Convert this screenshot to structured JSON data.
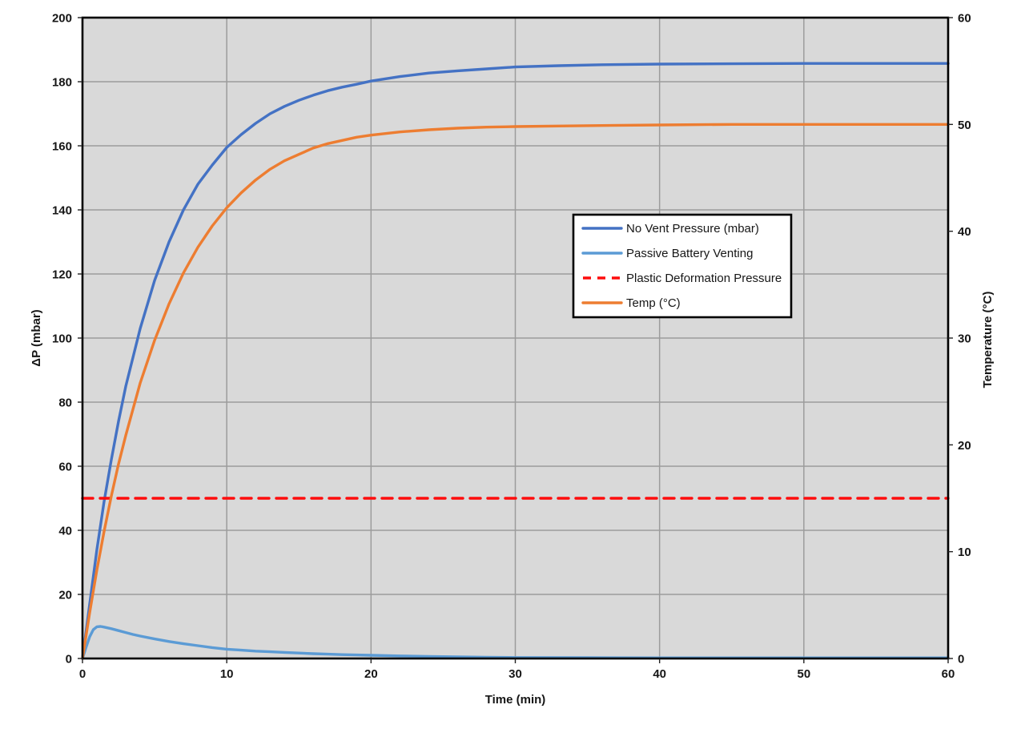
{
  "chart_data": {
    "type": "line",
    "title": "",
    "plot_background": "#d9d9d9",
    "grid_color": "#9c9c9c",
    "border_color": "#000000",
    "x_axis": {
      "label": "Time (min)",
      "min": 0,
      "max": 60,
      "ticks": [
        0,
        10,
        20,
        30,
        40,
        50,
        60
      ]
    },
    "y_axis_left": {
      "label": "ΔP (mbar)",
      "min": 0,
      "max": 200,
      "ticks": [
        0,
        20,
        40,
        60,
        80,
        100,
        120,
        140,
        160,
        180,
        200
      ]
    },
    "y_axis_right": {
      "label": "Temperature (°C)",
      "min": 0,
      "max": 60,
      "ticks": [
        0,
        10,
        20,
        30,
        40,
        50,
        60
      ]
    },
    "legend": {
      "position": "middle-right",
      "background": "#ffffff",
      "border_color": "#000000"
    },
    "series": [
      {
        "name": "No Vent Pressure (mbar)",
        "axis": "left",
        "color": "#4472c4",
        "style": "solid",
        "x": [
          0,
          0.5,
          1,
          1.5,
          2,
          2.5,
          3,
          4,
          5,
          6,
          7,
          8,
          9,
          10,
          11,
          12,
          13,
          14,
          15,
          16,
          17,
          18,
          19,
          20,
          22,
          24,
          26,
          28,
          30,
          33,
          36,
          40,
          45,
          50,
          55,
          60
        ],
        "y": [
          0,
          17,
          34,
          49,
          62,
          74,
          85,
          103,
          118,
          130,
          140,
          148,
          154,
          159.5,
          163.5,
          167,
          170,
          172.3,
          174.2,
          175.8,
          177.2,
          178.3,
          179.2,
          180.2,
          181.6,
          182.7,
          183.4,
          184,
          184.6,
          185,
          185.3,
          185.5,
          185.6,
          185.7,
          185.7,
          185.7
        ]
      },
      {
        "name": "Passive Battery Venting",
        "axis": "left",
        "color": "#5b9bd5",
        "style": "solid",
        "x": [
          0,
          0.25,
          0.5,
          0.75,
          1,
          1.25,
          1.5,
          2,
          2.5,
          3,
          3.5,
          4,
          5,
          6,
          7,
          8,
          9,
          10,
          11,
          12,
          13,
          14,
          15,
          16,
          17,
          18,
          19,
          20,
          22,
          24,
          26,
          28,
          30,
          35,
          40,
          45,
          50,
          55,
          60
        ],
        "y": [
          0,
          3.5,
          6.8,
          9.0,
          9.9,
          10.0,
          9.8,
          9.3,
          8.7,
          8.1,
          7.5,
          7.0,
          6.1,
          5.3,
          4.6,
          4.0,
          3.4,
          2.9,
          2.6,
          2.3,
          2.1,
          1.9,
          1.7,
          1.5,
          1.35,
          1.2,
          1.1,
          1.0,
          0.8,
          0.65,
          0.5,
          0.4,
          0.3,
          0.25,
          0.2,
          0.2,
          0.2,
          0.2,
          0.2
        ]
      },
      {
        "name": "Plastic Deformation Pressure",
        "axis": "left",
        "color": "#fe0d0d",
        "style": "dashed",
        "x": [
          0,
          60
        ],
        "y": [
          50,
          50
        ]
      },
      {
        "name": "Temp (°C)",
        "axis": "right",
        "color": "#ed7d31",
        "style": "solid",
        "x": [
          0,
          0.5,
          1,
          1.5,
          2,
          2.5,
          3,
          4,
          5,
          6,
          7,
          8,
          9,
          10,
          11,
          12,
          13,
          14,
          15,
          16,
          17,
          18,
          19,
          20,
          22,
          24,
          26,
          28,
          30,
          33,
          36,
          40,
          45,
          50,
          55,
          60
        ],
        "y": [
          0,
          4.3,
          8.3,
          11.9,
          15.2,
          18.2,
          20.9,
          25.8,
          29.8,
          33.2,
          36.1,
          38.5,
          40.5,
          42.2,
          43.6,
          44.8,
          45.8,
          46.6,
          47.2,
          47.8,
          48.2,
          48.5,
          48.8,
          49.0,
          49.3,
          49.5,
          49.65,
          49.75,
          49.8,
          49.85,
          49.9,
          49.95,
          50,
          50,
          50,
          50
        ]
      }
    ]
  }
}
